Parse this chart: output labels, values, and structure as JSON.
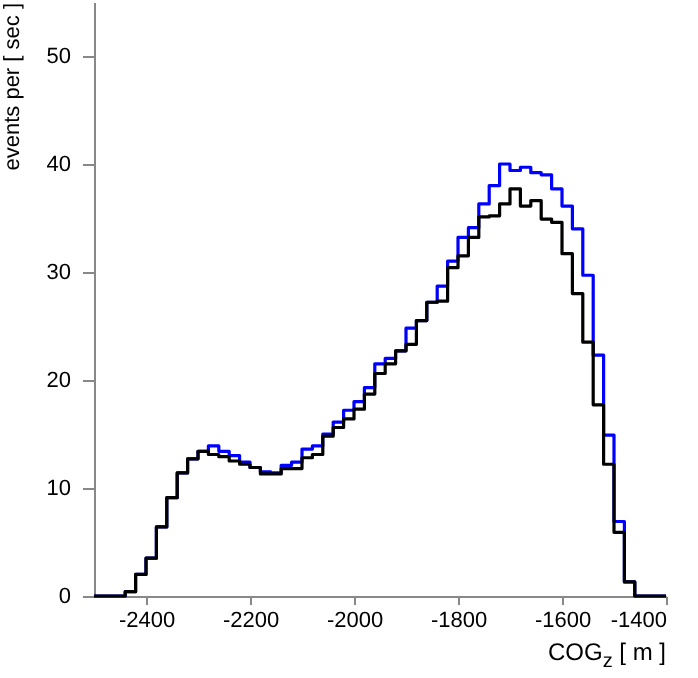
{
  "chart_data": {
    "type": "histogram",
    "xlabel": "COG$_{z}$ [ m ]",
    "ylabel": "events per [ sec ]",
    "bins": [
      -2500,
      -2480,
      -2460,
      -2440,
      -2420,
      -2400,
      -2380,
      -2360,
      -2340,
      -2320,
      -2300,
      -2280,
      -2260,
      -2240,
      -2220,
      -2200,
      -2180,
      -2160,
      -2140,
      -2120,
      -2100,
      -2080,
      -2060,
      -2040,
      -2020,
      -2000,
      -1980,
      -1960,
      -1940,
      -1920,
      -1900,
      -1880,
      -1860,
      -1840,
      -1820,
      -1800,
      -1780,
      -1760,
      -1740,
      -1720,
      -1700,
      -1680,
      -1660,
      -1640,
      -1620,
      -1600,
      -1580,
      -1560,
      -1540,
      -1520,
      -1500,
      -1480,
      -1460,
      -1440,
      -1420,
      -1400
    ],
    "series": [
      {
        "color": "#0000ff",
        "values": [
          0,
          0,
          0,
          0.4,
          2.0,
          3.5,
          6.4,
          9.1,
          11.4,
          12.7,
          13.4,
          13.9,
          13.4,
          13.0,
          12.4,
          11.9,
          11.5,
          11.4,
          12.1,
          12.4,
          13.6,
          13.9,
          15.0,
          16.1,
          17.2,
          18.0,
          19.3,
          21.5,
          22.0,
          22.7,
          24.8,
          25.5,
          27.2,
          28.7,
          31.0,
          33.2,
          34.1,
          36.3,
          38.0,
          40.0,
          39.4,
          39.7,
          39.2,
          39.0,
          37.7,
          36.1,
          34.0,
          29.7,
          22.3,
          14.9,
          6.9,
          1.3,
          0,
          0,
          0
        ]
      },
      {
        "color": "#000000",
        "values": [
          0,
          0,
          0,
          0.4,
          2.0,
          3.5,
          6.4,
          9.1,
          11.4,
          12.7,
          13.4,
          13.1,
          12.9,
          12.5,
          12.2,
          11.9,
          11.3,
          11.3,
          11.8,
          11.8,
          12.8,
          13.1,
          14.8,
          15.6,
          16.4,
          17.3,
          18.7,
          20.6,
          21.5,
          22.7,
          23.3,
          25.5,
          27.2,
          27.3,
          30.4,
          31.5,
          33.2,
          35.1,
          35.2,
          36.3,
          37.7,
          36.1,
          36.6,
          34.9,
          34.6,
          31.7,
          28.0,
          23.5,
          17.7,
          12.2,
          5.9,
          1.3,
          0,
          0,
          0
        ]
      }
    ],
    "xlim": [
      -2500,
      -1400
    ],
    "xticks": [
      -2400,
      -2200,
      -2000,
      -1800,
      -1600,
      -1400
    ],
    "ylim": [
      0,
      55
    ],
    "yticks": [
      0,
      10,
      20,
      30,
      40,
      50
    ]
  }
}
